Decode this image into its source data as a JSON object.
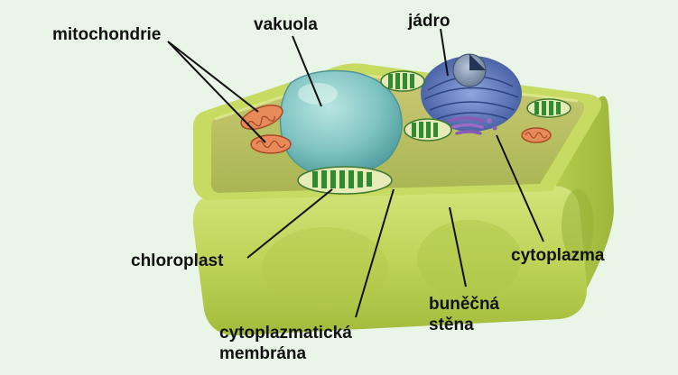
{
  "labels": {
    "mitochondrie": "mitochondrie",
    "vakuola": "vakuola",
    "jadro": "jádro",
    "chloroplast": "chloroplast",
    "cytoplazma": "cytoplazma",
    "bunecna_stena_line1": "buněčná",
    "bunecna_stena_line2": "stěna",
    "cytoplazmaticka_line1": "cytoplazmatická",
    "cytoplazmaticka_line2": "membrána"
  },
  "colors": {
    "background": "#e9f5e7",
    "cell_wall": "#c3d65c",
    "cytoplasm": "#a9b94c",
    "vacuole": "#7fc3c2",
    "nucleus": "#5c77b8",
    "chloroplast": "#3f9a3a",
    "mitochondria": "#d86a3c",
    "golgi": "#8a5bb5",
    "leader_lines": "#111111"
  }
}
